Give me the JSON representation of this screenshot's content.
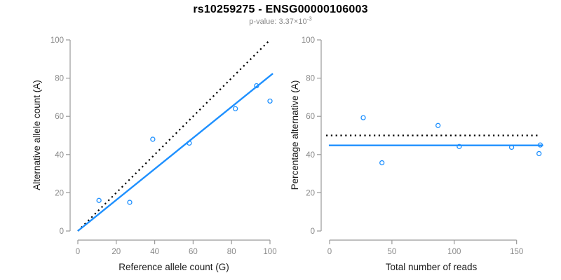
{
  "header": {
    "title": "rs10259275 - ENSG00000106003",
    "pvalue_prefix": "p-value: 3.37×10",
    "pvalue_exponent": "-3"
  },
  "colors": {
    "accent_blue": "#1E90FF",
    "reference_line_black": "#000000",
    "axis_line_gray": "#999999",
    "tick_label_gray": "#888888",
    "axis_title_color": "#1a1a1a",
    "subtitle_gray": "#888888"
  },
  "chart_data": [
    {
      "type": "scatter",
      "name": "allele-counts-panel",
      "xlabel": "Reference allele count (G)",
      "ylabel": "Alternative allele count (A)",
      "xticks": [
        0,
        20,
        40,
        60,
        80,
        100
      ],
      "yticks": [
        0,
        20,
        40,
        60,
        80,
        100
      ],
      "xlim": [
        -4,
        104
      ],
      "ylim": [
        -4,
        104
      ],
      "grid": false,
      "legend": "none",
      "points": [
        [
          11,
          16
        ],
        [
          27,
          15
        ],
        [
          39,
          48
        ],
        [
          58,
          46
        ],
        [
          82,
          64
        ],
        [
          93,
          76
        ],
        [
          100,
          68
        ]
      ],
      "lines": [
        {
          "role": "identity-line",
          "style": "dotted",
          "color": "#000000",
          "x1": 0,
          "y1": 0,
          "x2": 100,
          "y2": 100
        },
        {
          "role": "fit-line",
          "style": "solid",
          "color": "#1E90FF",
          "x1": 0,
          "y1": 0,
          "x2": 101.5,
          "y2": 82.4
        }
      ]
    },
    {
      "type": "scatter",
      "name": "percentage-panel",
      "xlabel": "Total number of reads",
      "ylabel": "Percentage alternative (A)",
      "xticks": [
        0,
        50,
        100,
        150
      ],
      "yticks": [
        0,
        20,
        40,
        60,
        80,
        100
      ],
      "xlim": [
        -7,
        177
      ],
      "ylim": [
        -4,
        104
      ],
      "grid": false,
      "legend": "none",
      "points": [
        [
          27,
          59.3
        ],
        [
          42,
          35.7
        ],
        [
          87,
          55.2
        ],
        [
          104,
          44.2
        ],
        [
          146,
          43.8
        ],
        [
          169,
          45.0
        ],
        [
          168,
          40.5
        ]
      ],
      "lines": [
        {
          "role": "fifty-percent-line",
          "style": "dotted",
          "color": "#000000",
          "x1": -2.8,
          "y1": 50,
          "x2": 168,
          "y2": 50
        },
        {
          "role": "mean-percentage-line",
          "style": "solid",
          "color": "#1E90FF",
          "x1": -0.6,
          "y1": 44.8,
          "x2": 171.3,
          "y2": 44.8
        }
      ]
    }
  ]
}
